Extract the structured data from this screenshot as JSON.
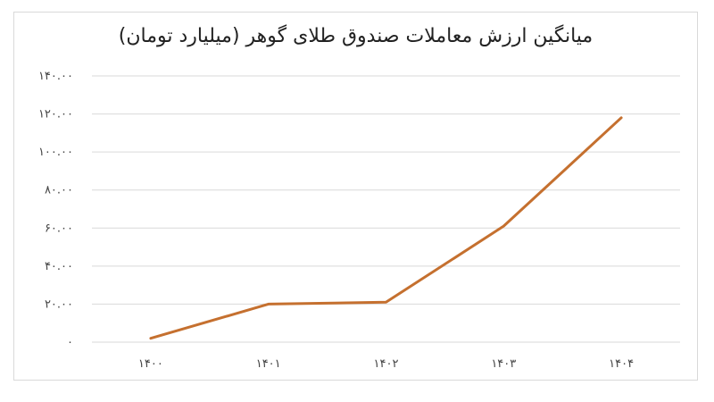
{
  "chart_data": {
    "type": "line",
    "title": "میانگین ارزش معاملات صندوق طلای گوهر (میلیارد تومان)",
    "xlabel": "",
    "ylabel": "",
    "categories": [
      "۱۴۰۰",
      "۱۴۰۱",
      "۱۴۰۲",
      "۱۴۰۳",
      "۱۴۰۴"
    ],
    "yticks": [
      0,
      20,
      40,
      60,
      80,
      100,
      120,
      140
    ],
    "ytick_labels": [
      "۰",
      "۲۰.۰۰",
      "۴۰.۰۰",
      "۶۰.۰۰",
      "۸۰.۰۰",
      "۱۰۰.۰۰",
      "۱۲۰.۰۰",
      "۱۴۰.۰۰"
    ],
    "ylim": [
      0,
      140
    ],
    "grid": true,
    "legend": "none",
    "series": [
      {
        "values": [
          2,
          20,
          21,
          61,
          118
        ],
        "color": "#c5702f"
      }
    ],
    "colors": {
      "grid": "#d9d9d9",
      "line": "#c5702f"
    }
  }
}
